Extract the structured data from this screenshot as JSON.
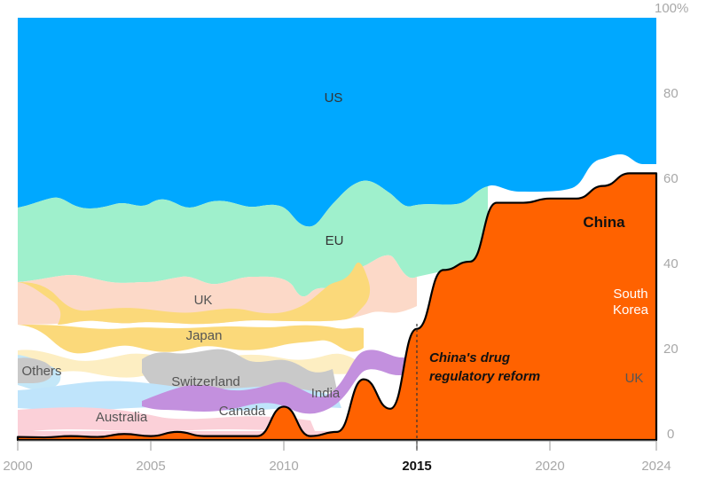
{
  "chart_data": {
    "type": "area",
    "stacking": "percent",
    "x_range": [
      2000,
      2024
    ],
    "ylim": [
      0,
      100
    ],
    "x_ticks": [
      "2000",
      "2005",
      "2010",
      "2015",
      "2020",
      "2024"
    ],
    "x_tick_bold": "2015",
    "y_ticks": [
      "0",
      "20",
      "40",
      "60",
      "80",
      "100%"
    ],
    "grid": false,
    "annotation": {
      "x": 2015,
      "text_lines": [
        "China's drug",
        "regulatory reform"
      ]
    },
    "series_labels": {
      "us": "US",
      "eu": "EU",
      "china": "China",
      "uk": "UK",
      "uk_right": "UK",
      "japan": "Japan",
      "others": "Others",
      "switzerland": "Switzerland",
      "india": "India",
      "canada": "Canada",
      "australia": "Australia",
      "south_korea_line1": "South",
      "south_korea_line2": "Korea"
    },
    "colors": {
      "us": "#00a8ff",
      "eu": "#9ff0cc",
      "china": "#ff6200",
      "uk": "#fcd9c8",
      "japan": "#fbd97a",
      "switzerland": "#c9c9c9",
      "india": "#c390de",
      "canada": "#bfe4fb",
      "australia": "#fbd0d8",
      "south_korea": "#c390de",
      "others": "#c3e7f8",
      "pale_yellow": "#fdeec2"
    },
    "series": [
      {
        "name": "China",
        "x": [
          2000,
          2001,
          2002,
          2003,
          2004,
          2005,
          2006,
          2007,
          2008,
          2009,
          2010,
          2011,
          2012,
          2013,
          2014,
          2015,
          2016,
          2017,
          2018,
          2019,
          2020,
          2021,
          2022,
          2023,
          2024
        ],
        "values": [
          0.3,
          0.2,
          0.5,
          0.3,
          1,
          0.5,
          1.5,
          0.5,
          0.5,
          0.5,
          7.5,
          0.5,
          1.5,
          14,
          7,
          26,
          40,
          42,
          56,
          56,
          57,
          57,
          60,
          63,
          63
        ],
        "baseline": [
          0,
          0,
          0,
          0,
          0,
          0,
          0,
          0,
          0,
          0,
          0,
          0,
          0,
          0,
          0,
          0,
          0,
          0,
          0,
          0,
          0,
          0,
          0,
          0,
          0
        ]
      },
      {
        "name": "US",
        "x": [
          2000,
          2001,
          2002,
          2003,
          2004,
          2005,
          2006,
          2007,
          2008,
          2009,
          2010,
          2011,
          2012,
          2013,
          2014,
          2015,
          2016,
          2017,
          2018,
          2019,
          2020,
          2021,
          2022,
          2023,
          2024
        ],
        "values": [
          44.5,
          47,
          45,
          45,
          48,
          46,
          45,
          45,
          44.5,
          45.5,
          46,
          49,
          43,
          39,
          43,
          44,
          43.5,
          42,
          41,
          41,
          41,
          39.5,
          38.5,
          37,
          37
        ]
      },
      {
        "name": "EU",
        "x": [
          2000,
          2001,
          2002,
          2003,
          2004,
          2005,
          2006,
          2007,
          2008,
          2009,
          2010,
          2011,
          2012,
          2013,
          2014,
          2015,
          2016,
          2017,
          2018,
          2019,
          2020,
          2021,
          2022,
          2023,
          2024
        ],
        "values": [
          17,
          16,
          16,
          16,
          15,
          16,
          17,
          16,
          16,
          17,
          18,
          16,
          16,
          20,
          16,
          13,
          10,
          6,
          3,
          0,
          0,
          0,
          0,
          0,
          0
        ]
      }
    ]
  }
}
